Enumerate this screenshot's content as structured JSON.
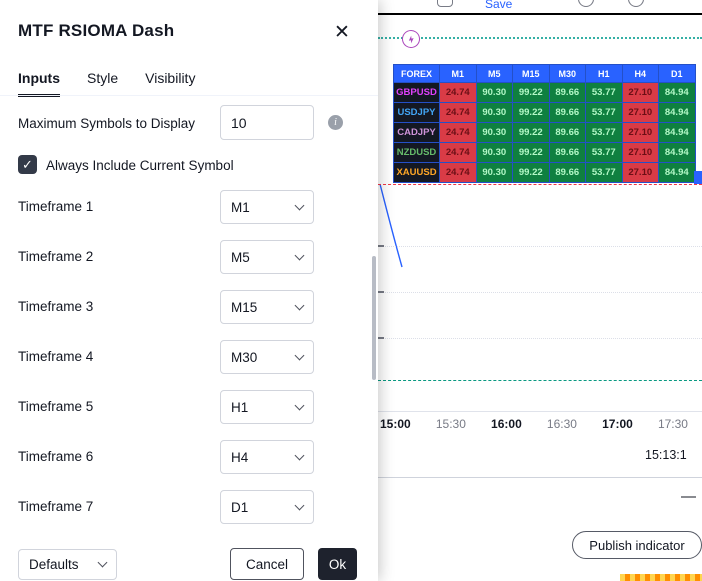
{
  "icons": {
    "close": "✕",
    "check": "✓",
    "info": "i",
    "collapse": "—"
  },
  "dialog": {
    "title": "MTF RSIOMA Dash",
    "tabs": [
      {
        "label": "Inputs"
      },
      {
        "label": "Style"
      },
      {
        "label": "Visibility"
      }
    ],
    "max_symbols": {
      "label": "Maximum Symbols to Display",
      "value": "10"
    },
    "include_current": {
      "label": "Always Include Current Symbol",
      "checked": true
    },
    "timeframes": [
      {
        "label": "Timeframe 1",
        "value": "M1"
      },
      {
        "label": "Timeframe 2",
        "value": "M5"
      },
      {
        "label": "Timeframe 3",
        "value": "M15"
      },
      {
        "label": "Timeframe 4",
        "value": "M30"
      },
      {
        "label": "Timeframe 5",
        "value": "H1"
      },
      {
        "label": "Timeframe 6",
        "value": "H4"
      },
      {
        "label": "Timeframe 7",
        "value": "D1"
      }
    ],
    "footer": {
      "defaults": "Defaults",
      "cancel": "Cancel",
      "ok": "Ok"
    }
  },
  "chart": {
    "toolbar": {
      "save": "Save"
    },
    "dashboard": {
      "headers": [
        "FOREX",
        "M1",
        "M5",
        "M15",
        "M30",
        "H1",
        "H4",
        "D1"
      ],
      "values": [
        "24.74",
        "90.30",
        "99.22",
        "89.66",
        "53.77",
        "27.10",
        "84.94"
      ],
      "states": [
        "down",
        "up",
        "up",
        "up",
        "up",
        "down",
        "up"
      ],
      "rows": [
        {
          "symbol": "GBPUSD",
          "color": "#e040fb"
        },
        {
          "symbol": "USDJPY",
          "color": "#42a5f5"
        },
        {
          "symbol": "CADJPY",
          "color": "#ce93d8"
        },
        {
          "symbol": "NZDUSD",
          "color": "#66bb6a"
        },
        {
          "symbol": "XAUUSD",
          "color": "#ffa726"
        }
      ],
      "colors": {
        "header_bg": "#2962ff",
        "symbol_bg": "#141823",
        "up_bg": "#0f8040",
        "up_text": "#b2f7c6",
        "down_bg": "#d93b46",
        "down_text": "#6b0f16"
      }
    },
    "time_axis": {
      "labels": [
        "15:00",
        "15:30",
        "16:00",
        "16:30",
        "17:00",
        "17:30"
      ],
      "major": [
        true,
        false,
        true,
        false,
        true,
        false
      ]
    },
    "timer": "15:13:1",
    "panel": {
      "publish": "Publish indicator"
    }
  }
}
